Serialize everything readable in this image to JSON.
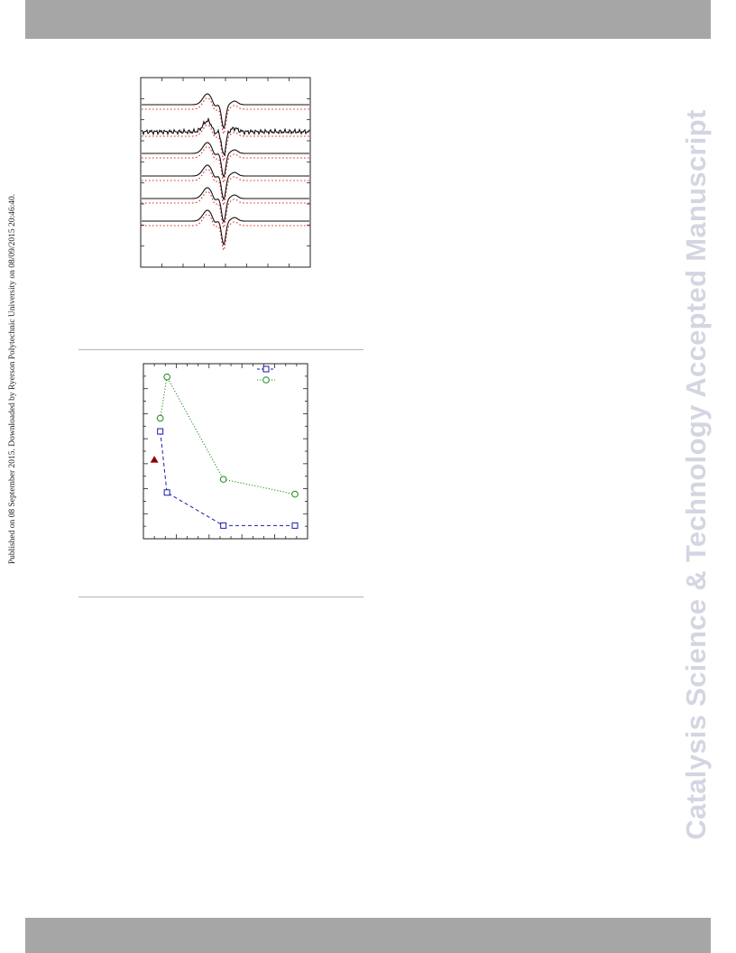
{
  "page": {
    "side_note": "Published on 08 September 2015. Downloaded by Ryerson Polytechnic University on 08/09/2015 20:46:40.",
    "watermark": "Catalysis Science & Technology Accepted Manuscript"
  },
  "colors": {
    "header_bar": "#a6a6a6",
    "watermark": "#d3d6e2",
    "rule": "#b4b4b4",
    "spectrum_exp": "#111111",
    "spectrum_sim": "#e02020",
    "series_square": "#1a1aa8",
    "series_circle": "#1a8a1a",
    "triangle_marker": "#8b0000"
  },
  "chart_data": [
    {
      "type": "line",
      "description_visible": "stacked EPR-like derivative spectra, experimental (black solid) and simulated (red dotted)",
      "traces": 6,
      "x_axis": {
        "ticks": 7
      },
      "y_axis": {
        "ticks": 8
      },
      "grid": false
    },
    {
      "type": "scatter",
      "x_axis": {
        "ticks": 14
      },
      "y_axis": {
        "ticks": 13
      },
      "series": [
        {
          "marker": "square",
          "color": "#1a1aa8",
          "line": "dashed",
          "points": [
            [
              1.0,
              6.5
            ],
            [
              1.8,
              2.8
            ],
            [
              8.5,
              0.8
            ],
            [
              17.0,
              0.8
            ]
          ]
        },
        {
          "marker": "circle",
          "color": "#1a8a1a",
          "line": "dotted",
          "points": [
            [
              1.0,
              7.3
            ],
            [
              1.8,
              9.8
            ],
            [
              8.5,
              3.6
            ],
            [
              17.0,
              2.7
            ]
          ]
        },
        {
          "marker": "triangle",
          "color": "#8b0000",
          "line": "none",
          "points": [
            [
              0.3,
              4.8
            ]
          ]
        }
      ],
      "xlim": [
        -1,
        18.5
      ],
      "ylim": [
        0,
        10.6
      ],
      "legend_position": "top-right",
      "grid": false
    }
  ]
}
